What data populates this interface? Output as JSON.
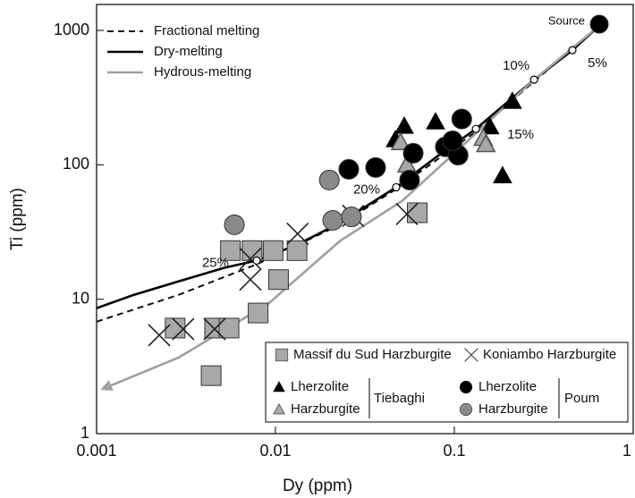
{
  "chart_data": {
    "type": "scatter",
    "x_label": "Dy (ppm)",
    "y_label": "Ti (ppm)",
    "log_x": true,
    "log_y": true,
    "xlim": [
      0.001,
      1
    ],
    "ylim": [
      1,
      1560
    ],
    "xticks": [
      0.001,
      0.01,
      0.1,
      1
    ],
    "yticks": [
      1,
      10,
      100,
      1000
    ],
    "lines": [
      {
        "name": "Fractional melting",
        "style": "dashed",
        "color": "#111111",
        "x": [
          0.001,
          0.00288,
          0.00785,
          0.0229,
          0.0473,
          0.132,
          0.279,
          0.646
        ],
        "y": [
          6.81,
          10.8,
          18.2,
          35.8,
          66.1,
          176,
          417,
          1080
        ]
      },
      {
        "name": "Dry-melting",
        "style": "solid",
        "color": "#000000",
        "x": [
          0.001,
          0.00162,
          0.00288,
          0.00513,
          0.00785,
          0.0129,
          0.0229,
          0.0473,
          0.0813,
          0.132,
          0.279,
          0.457,
          0.646
        ],
        "y": [
          8.58,
          10.8,
          13.6,
          17.1,
          19.4,
          25.1,
          36.9,
          68.1,
          117,
          185,
          430,
          713,
          1080
        ]
      },
      {
        "name": "Hydrous-melting",
        "style": "arrow",
        "color": "#a0a0a0",
        "x": [
          0.646,
          0.279,
          0.132,
          0.0513,
          0.0229,
          0.00912,
          0.00288,
          0.00108
        ],
        "y": [
          1080,
          430,
          171,
          54.1,
          27.1,
          9.26,
          3.69,
          2.15
        ]
      }
    ],
    "series": [
      {
        "name": "Massif du Sud Harzburgite",
        "marker": "square",
        "color": "#a8a8a8",
        "x": [
          0.00275,
          0.00457,
          0.0055,
          0.00437,
          0.0074,
          0.0056,
          0.0097,
          0.0132,
          0.0104,
          0.008,
          0.062
        ],
        "y": [
          6.1,
          6.1,
          6.1,
          2.7,
          23,
          23,
          23,
          23,
          14,
          7.9,
          44
        ]
      },
      {
        "name": "Koniambo Harzburgite",
        "marker": "cross",
        "color": "#222222",
        "x": [
          0.00224,
          0.00305,
          0.00457,
          0.00724,
          0.00724,
          0.0133,
          0.0272,
          0.0543
        ],
        "y": [
          5.4,
          6.0,
          6.0,
          14,
          20,
          30.7,
          41.7,
          43
        ]
      },
      {
        "name": "Lherzolite",
        "group": "Tiebaghi",
        "marker": "triangle",
        "color": "#000000",
        "x": [
          0.0525,
          0.0468,
          0.0785,
          0.211,
          0.186,
          0.158
        ],
        "y": [
          194,
          154,
          209,
          297,
          83,
          192
        ]
      },
      {
        "name": "Harzburgite",
        "group": "Tiebaghi",
        "marker": "open-triangle",
        "color": "#a8a8a8",
        "x": [
          0.0501,
          0.0543,
          0.145,
          0.15
        ],
        "y": [
          147,
          100,
          158,
          142
        ]
      },
      {
        "name": "Lherzolite",
        "group": "Poum",
        "marker": "circle",
        "color": "#000000",
        "x": [
          0.646,
          0.0257,
          0.0363,
          0.0589,
          0.0562,
          0.11,
          0.0891,
          0.105,
          0.0977
        ],
        "y": [
          1113,
          92.6,
          95.5,
          122,
          77,
          219,
          136,
          118,
          151
        ]
      },
      {
        "name": "Harzburgite",
        "group": "Poum",
        "marker": "circle",
        "color": "#8a8a8a",
        "x": [
          0.02,
          0.00589,
          0.0209,
          0.0266
        ],
        "y": [
          77,
          35.8,
          38.6,
          41
        ]
      }
    ],
    "annotations": [
      {
        "text": "5%",
        "x": 0.457,
        "y": 713
      },
      {
        "text": "10%",
        "x": 0.279,
        "y": 430
      },
      {
        "text": "15%",
        "x": 0.132,
        "y": 185
      },
      {
        "text": "20%",
        "x": 0.0473,
        "y": 68.1
      },
      {
        "text": "25%",
        "x": 0.00785,
        "y": 19.4
      }
    ],
    "source_label": {
      "text": "Source",
      "x": 0.646,
      "y": 1113
    }
  }
}
